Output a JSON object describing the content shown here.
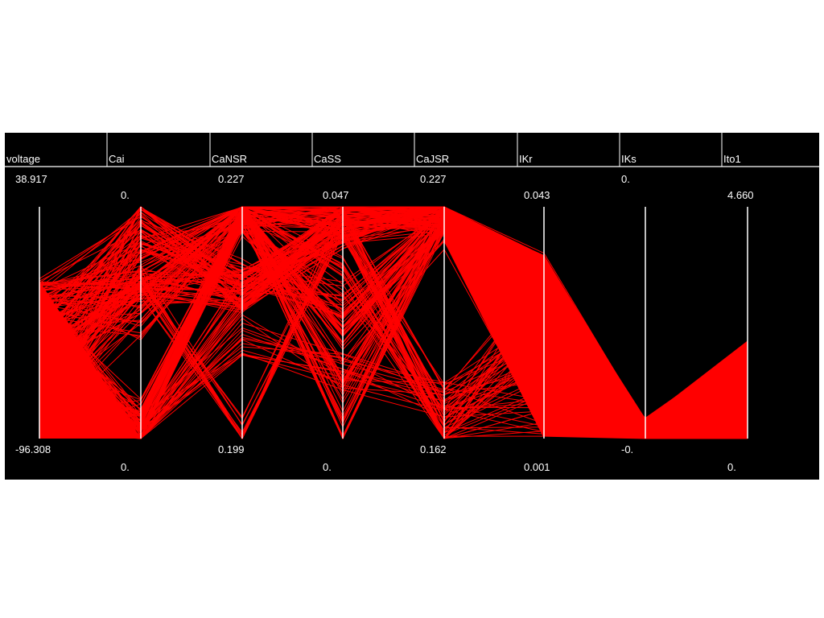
{
  "chart_data": {
    "type": "parallel-coordinates",
    "line_color": "#ff0000",
    "background": "#000000",
    "axis_color": "#ffffff",
    "axes": [
      {
        "name": "voltage",
        "max": "38.917",
        "min": "-96.308"
      },
      {
        "name": "Cai",
        "max": "0.",
        "min": "0."
      },
      {
        "name": "CaNSR",
        "max": "0.227",
        "min": "0.199"
      },
      {
        "name": "CaSS",
        "max": "0.047",
        "min": "0."
      },
      {
        "name": "CaJSR",
        "max": "0.227",
        "min": "0.162"
      },
      {
        "name": "IKr",
        "max": "0.043",
        "min": "0.001"
      },
      {
        "name": "IKs",
        "max": "0.",
        "min": "-0."
      },
      {
        "name": "Ito1",
        "max": "4.660",
        "min": "0."
      }
    ],
    "lines": [
      [
        0.69,
        0.96,
        0.64,
        0.95,
        1.0,
        0.8,
        0.07,
        0.4
      ],
      [
        0.68,
        0.9,
        0.62,
        0.94,
        0.98,
        0.78,
        0.06,
        0.38
      ],
      [
        0.67,
        0.66,
        0.63,
        0.92,
        0.97,
        0.75,
        0.05,
        0.36
      ],
      [
        0.66,
        0.65,
        0.64,
        0.93,
        0.95,
        0.74,
        0.08,
        0.42
      ],
      [
        0.65,
        0.01,
        0.63,
        0.9,
        0.99,
        0.77,
        0.06,
        0.39
      ],
      [
        0.64,
        0.66,
        0.01,
        0.96,
        0.01,
        0.01,
        0.0,
        0.0
      ],
      [
        0.62,
        0.6,
        0.99,
        0.2,
        0.97,
        0.73,
        0.05,
        0.35
      ],
      [
        0.61,
        0.8,
        1.0,
        0.01,
        0.96,
        0.7,
        0.04,
        0.3
      ],
      [
        0.6,
        0.7,
        0.98,
        0.95,
        0.15,
        0.4,
        0.02,
        0.1
      ],
      [
        0.58,
        0.5,
        0.97,
        0.4,
        0.9,
        0.72,
        0.06,
        0.37
      ],
      [
        0.56,
        0.05,
        1.0,
        0.98,
        1.0,
        0.76,
        0.07,
        0.41
      ],
      [
        0.54,
        0.92,
        0.7,
        0.6,
        0.98,
        0.79,
        0.06,
        0.38
      ],
      [
        0.5,
        0.1,
        0.99,
        0.7,
        0.05,
        0.02,
        0.01,
        0.02
      ],
      [
        0.45,
        0.03,
        0.96,
        0.5,
        0.95,
        0.75,
        0.05,
        0.34
      ],
      [
        0.4,
        0.02,
        0.45,
        0.3,
        0.16,
        0.35,
        0.03,
        0.12
      ],
      [
        0.3,
        0.04,
        0.98,
        0.97,
        0.99,
        0.77,
        0.06,
        0.36
      ],
      [
        0.1,
        0.01,
        0.99,
        0.99,
        1.0,
        0.78,
        0.06,
        0.38
      ]
    ]
  }
}
